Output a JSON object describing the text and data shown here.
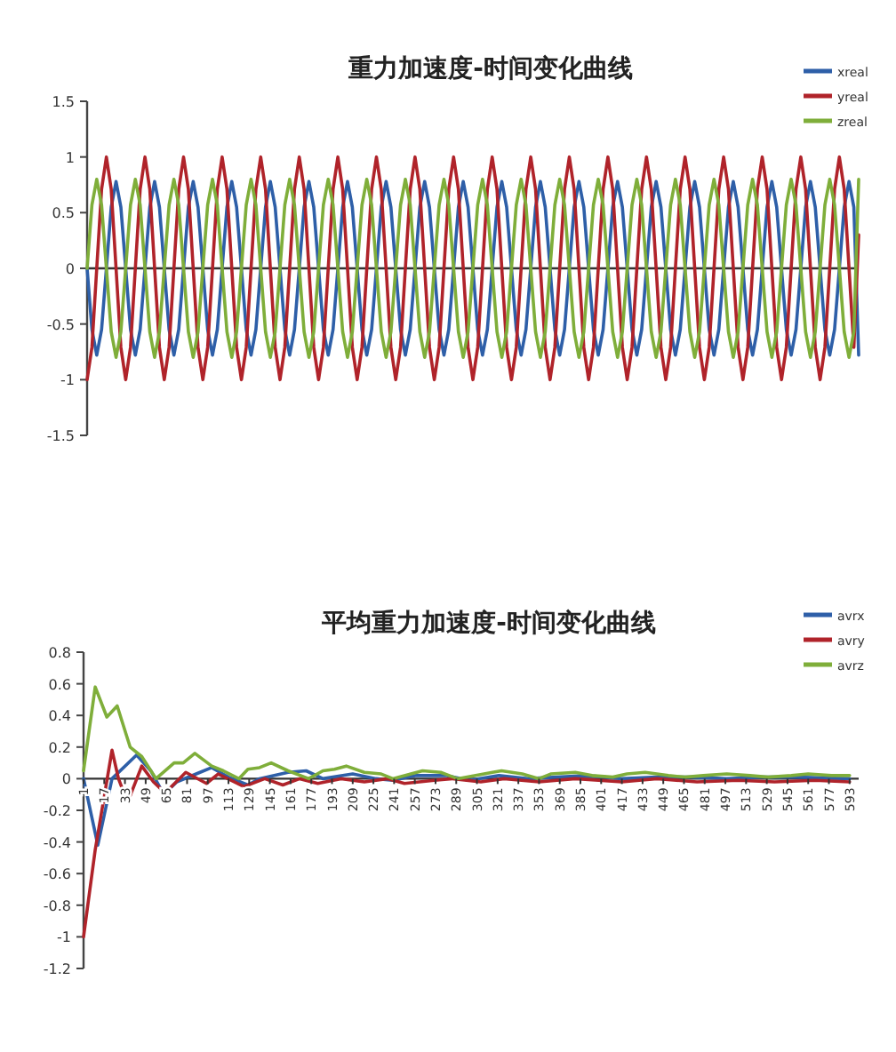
{
  "chart_data": [
    {
      "type": "line",
      "title": "重力加速度-时间变化曲线",
      "ylim": [
        -1.5,
        1.5
      ],
      "yticks": [
        1.5,
        1,
        0.5,
        0,
        -0.5,
        -1,
        -1.5
      ],
      "legend": "top right",
      "categories": [
        null,
        null,
        null,
        null,
        null,
        null,
        null,
        null,
        null,
        null,
        null,
        null,
        null,
        null,
        null,
        null,
        null,
        null,
        null,
        null,
        null,
        null,
        null,
        null,
        null,
        null,
        null,
        null,
        null,
        null,
        null,
        null,
        null,
        null,
        null,
        null,
        null,
        null,
        null,
        null,
        null,
        null,
        null,
        null,
        null,
        null,
        null,
        null,
        null,
        null,
        null,
        null,
        null,
        null,
        null,
        null,
        null,
        null,
        null,
        null,
        null,
        null,
        null,
        null,
        null,
        null,
        null,
        null,
        null,
        null,
        null,
        null,
        null,
        null,
        null,
        null,
        null,
        null,
        null,
        null,
        null,
        null,
        null,
        null,
        null,
        null,
        null,
        null,
        null,
        null,
        null,
        null,
        null,
        null,
        null,
        null,
        null,
        null,
        null,
        null,
        null,
        null,
        null,
        null,
        null,
        null,
        null,
        null,
        null,
        null,
        null,
        null,
        null,
        null,
        null,
        null,
        null,
        null,
        null,
        null,
        null,
        null,
        null,
        null,
        null,
        null,
        null,
        null,
        null,
        null,
        null,
        null,
        null,
        null,
        null,
        null,
        null,
        null,
        null,
        null,
        null,
        null,
        null,
        null,
        null,
        null,
        null,
        null,
        null,
        null,
        null,
        null,
        null,
        null,
        null,
        null,
        null,
        null,
        null,
        null,
        null
      ],
      "series": [
        {
          "name": "xreal",
          "color": "#2e5fa8",
          "values": [
            0,
            -0.55,
            -0.78,
            -0.55,
            0,
            0.55,
            0.78,
            0.55,
            0,
            -0.55,
            -0.78,
            -0.55,
            0,
            0.55,
            0.78,
            0.55,
            0,
            -0.55,
            -0.78,
            -0.55,
            0,
            0.55,
            0.78,
            0.55,
            0,
            -0.55,
            -0.78,
            -0.55,
            0,
            0.55,
            0.78,
            0.55,
            0,
            -0.55,
            -0.78,
            -0.55,
            0,
            0.55,
            0.78,
            0.55,
            0,
            -0.55,
            -0.78,
            -0.55,
            0,
            0.55,
            0.78,
            0.55,
            0,
            -0.55,
            -0.78,
            -0.55,
            0,
            0.55,
            0.78,
            0.55,
            0,
            -0.55,
            -0.78,
            -0.55,
            0,
            0.55,
            0.78,
            0.55,
            0,
            -0.55,
            -0.78,
            -0.55,
            0,
            0.55,
            0.78,
            0.55,
            0,
            -0.55,
            -0.78,
            -0.55,
            0,
            0.55,
            0.78,
            0.55,
            0,
            -0.55,
            -0.78,
            -0.55,
            0,
            0.55,
            0.78,
            0.55,
            0,
            -0.55,
            -0.78,
            -0.55,
            0,
            0.55,
            0.78,
            0.55,
            0,
            -0.55,
            -0.78,
            -0.55,
            0,
            0.55,
            0.78,
            0.55,
            0,
            -0.55,
            -0.78,
            -0.55,
            0,
            0.55,
            0.78,
            0.55,
            0,
            -0.55,
            -0.78,
            -0.55,
            0,
            0.55,
            0.78,
            0.55,
            0,
            -0.55,
            -0.78,
            -0.55,
            0,
            0.55,
            0.78,
            0.55,
            0,
            -0.55,
            -0.78,
            -0.55,
            0,
            0.55,
            0.78,
            0.55,
            0,
            -0.55,
            -0.78,
            -0.55,
            0,
            0.55,
            0.78,
            0.55,
            0,
            -0.55,
            -0.78,
            -0.55,
            0,
            0.55,
            0.78,
            0.55,
            0,
            -0.55,
            -0.78,
            -0.55,
            0,
            0.55,
            0.78,
            0.55,
            -0.78
          ]
        },
        {
          "name": "yreal",
          "color": "#b0232a",
          "values": [
            -1,
            -0.71,
            0,
            0.71,
            1,
            0.71,
            0,
            -0.71,
            -1,
            -0.71,
            0,
            0.71,
            1,
            0.71,
            0,
            -0.71,
            -1,
            -0.71,
            0,
            0.71,
            1,
            0.71,
            0,
            -0.71,
            -1,
            -0.71,
            0,
            0.71,
            1,
            0.71,
            0,
            -0.71,
            -1,
            -0.71,
            0,
            0.71,
            1,
            0.71,
            0,
            -0.71,
            -1,
            -0.71,
            0,
            0.71,
            1,
            0.71,
            0,
            -0.71,
            -1,
            -0.71,
            0,
            0.71,
            1,
            0.71,
            0,
            -0.71,
            -1,
            -0.71,
            0,
            0.71,
            1,
            0.71,
            0,
            -0.71,
            -1,
            -0.71,
            0,
            0.71,
            1,
            0.71,
            0,
            -0.71,
            -1,
            -0.71,
            0,
            0.71,
            1,
            0.71,
            0,
            -0.71,
            -1,
            -0.71,
            0,
            0.71,
            1,
            0.71,
            0,
            -0.71,
            -1,
            -0.71,
            0,
            0.71,
            1,
            0.71,
            0,
            -0.71,
            -1,
            -0.71,
            0,
            0.71,
            1,
            0.71,
            0,
            -0.71,
            -1,
            -0.71,
            0,
            0.71,
            1,
            0.71,
            0,
            -0.71,
            -1,
            -0.71,
            0,
            0.71,
            1,
            0.71,
            0,
            -0.71,
            -1,
            -0.71,
            0,
            0.71,
            1,
            0.71,
            0,
            -0.71,
            -1,
            -0.71,
            0,
            0.71,
            1,
            0.71,
            0,
            -0.71,
            -1,
            -0.71,
            0,
            0.71,
            1,
            0.71,
            0,
            -0.71,
            -1,
            -0.71,
            0,
            0.71,
            1,
            0.71,
            0,
            -0.71,
            -1,
            -0.71,
            0,
            0.71,
            1,
            0.71,
            0,
            -0.71,
            0.3
          ]
        },
        {
          "name": "zreal",
          "color": "#7fae3a",
          "values": [
            0,
            0.57,
            0.8,
            0.57,
            0,
            -0.57,
            -0.8,
            -0.57,
            0,
            0.57,
            0.8,
            0.57,
            0,
            -0.57,
            -0.8,
            -0.57,
            0,
            0.57,
            0.8,
            0.57,
            0,
            -0.57,
            -0.8,
            -0.57,
            0,
            0.57,
            0.8,
            0.57,
            0,
            -0.57,
            -0.8,
            -0.57,
            0,
            0.57,
            0.8,
            0.57,
            0,
            -0.57,
            -0.8,
            -0.57,
            0,
            0.57,
            0.8,
            0.57,
            0,
            -0.57,
            -0.8,
            -0.57,
            0,
            0.57,
            0.8,
            0.57,
            0,
            -0.57,
            -0.8,
            -0.57,
            0,
            0.57,
            0.8,
            0.57,
            0,
            -0.57,
            -0.8,
            -0.57,
            0,
            0.57,
            0.8,
            0.57,
            0,
            -0.57,
            -0.8,
            -0.57,
            0,
            0.57,
            0.8,
            0.57,
            0,
            -0.57,
            -0.8,
            -0.57,
            0,
            0.57,
            0.8,
            0.57,
            0,
            -0.57,
            -0.8,
            -0.57,
            0,
            0.57,
            0.8,
            0.57,
            0,
            -0.57,
            -0.8,
            -0.57,
            0,
            0.57,
            0.8,
            0.57,
            0,
            -0.57,
            -0.8,
            -0.57,
            0,
            0.57,
            0.8,
            0.57,
            0,
            -0.57,
            -0.8,
            -0.57,
            0,
            0.57,
            0.8,
            0.57,
            0,
            -0.57,
            -0.8,
            -0.57,
            0,
            0.57,
            0.8,
            0.57,
            0,
            -0.57,
            -0.8,
            -0.57,
            0,
            0.57,
            0.8,
            0.57,
            0,
            -0.57,
            -0.8,
            -0.57,
            0,
            0.57,
            0.8,
            0.57,
            0,
            -0.57,
            -0.8,
            -0.57,
            0,
            0.57,
            0.8,
            0.57,
            0,
            -0.57,
            -0.8,
            -0.57,
            0,
            0.57,
            0.8,
            0.57,
            0,
            -0.57,
            -0.8,
            -0.57,
            0.8
          ]
        }
      ]
    },
    {
      "type": "line",
      "title": "平均重力加速度-时间变化曲线",
      "xlim": [
        1,
        600
      ],
      "xticks": [
        1,
        17,
        33,
        49,
        65,
        81,
        97,
        113,
        129,
        145,
        161,
        177,
        193,
        209,
        225,
        241,
        257,
        273,
        289,
        305,
        321,
        337,
        353,
        369,
        385,
        401,
        417,
        433,
        449,
        465,
        481,
        497,
        513,
        529,
        545,
        561,
        577,
        593
      ],
      "ylim": [
        -1.2,
        0.8
      ],
      "yticks": [
        0.8,
        0.6,
        0.4,
        0.2,
        0,
        -0.2,
        -0.4,
        -0.6,
        -0.8,
        -1,
        -1.2
      ],
      "legend": "top right",
      "grid": false,
      "series": [
        {
          "name": "avrx",
          "color": "#2e5fa8",
          "x": [
            1,
            12,
            23,
            42,
            53,
            63,
            73,
            91,
            100,
            113,
            128,
            137,
            159,
            173,
            186,
            209,
            227,
            240,
            258,
            281,
            299,
            322,
            344,
            367,
            390,
            417,
            444,
            471,
            498,
            525,
            552,
            593
          ],
          "values": [
            0,
            -0.42,
            0,
            0.15,
            0.05,
            -0.1,
            -0.02,
            0.04,
            0.07,
            0.01,
            -0.04,
            0,
            0.04,
            0.05,
            0,
            0.03,
            0,
            -0.01,
            0.02,
            0.02,
            -0.01,
            0.02,
            0,
            0.01,
            0.02,
            0,
            0.01,
            0.01,
            0,
            0.01,
            0.01,
            0
          ]
        },
        {
          "name": "avry",
          "color": "#b0232a",
          "x": [
            1,
            10,
            23,
            28,
            35,
            46,
            55,
            64,
            80,
            96,
            105,
            125,
            141,
            155,
            168,
            182,
            200,
            218,
            236,
            249,
            272,
            286,
            308,
            326,
            353,
            381,
            417,
            444,
            475,
            507,
            535,
            566,
            593
          ],
          "values": [
            -1,
            -0.45,
            0.18,
            0,
            -0.15,
            0.08,
            -0.02,
            -0.09,
            0.04,
            -0.03,
            0.03,
            -0.05,
            0,
            -0.04,
            0,
            -0.03,
            0,
            -0.02,
            0,
            -0.03,
            -0.01,
            0,
            -0.02,
            0,
            -0.02,
            0,
            -0.02,
            0,
            -0.02,
            -0.01,
            -0.02,
            -0.01,
            -0.02
          ]
        },
        {
          "name": "avrz",
          "color": "#7fae3a",
          "x": [
            1,
            10,
            19,
            27,
            37,
            46,
            57,
            71,
            78,
            87,
            100,
            109,
            121,
            128,
            137,
            146,
            159,
            175,
            186,
            195,
            204,
            218,
            231,
            240,
            254,
            263,
            277,
            290,
            304,
            317,
            324,
            340,
            353,
            362,
            381,
            394,
            410,
            421,
            435,
            453,
            466,
            480,
            498,
            516,
            530,
            548,
            561,
            579,
            593
          ],
          "values": [
            0.05,
            0.58,
            0.39,
            0.46,
            0.2,
            0.14,
            0,
            0.1,
            0.1,
            0.16,
            0.08,
            0.05,
            0,
            0.06,
            0.07,
            0.1,
            0.05,
            0,
            0.05,
            0.06,
            0.08,
            0.04,
            0.03,
            0,
            0.03,
            0.05,
            0.04,
            0,
            0.02,
            0.04,
            0.05,
            0.03,
            0,
            0.03,
            0.04,
            0.02,
            0.01,
            0.03,
            0.04,
            0.02,
            0.01,
            0.02,
            0.03,
            0.02,
            0.01,
            0.02,
            0.03,
            0.02,
            0.02
          ]
        }
      ]
    }
  ]
}
